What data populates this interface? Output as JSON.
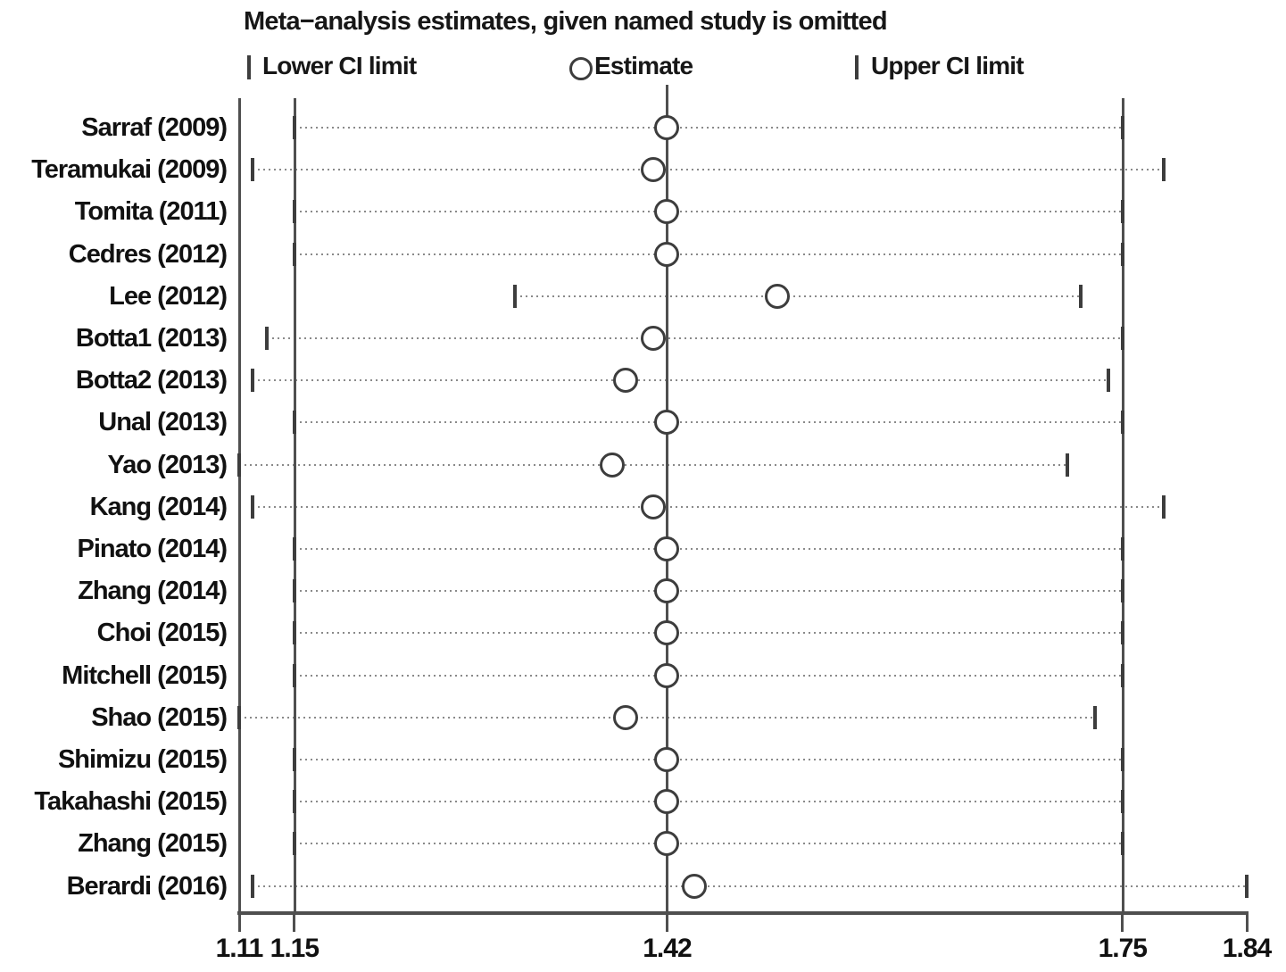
{
  "chart_data": {
    "type": "scatter",
    "variant": "leave-one-out-sensitivity-forest-plot",
    "title": "Meta−analysis estimates, given named study is omitted",
    "legend": {
      "lower": "Lower CI limit",
      "estimate": "Estimate",
      "upper": "Upper CI limit"
    },
    "xlim": [
      1.11,
      1.84
    ],
    "x_tick_values": [
      1.11,
      1.15,
      1.42,
      1.75,
      1.84
    ],
    "x_tick_labels": [
      "1.11",
      "1.15",
      "1.42",
      "1.75",
      "1.84"
    ],
    "reference_lines": {
      "overall_lower_ci": 1.15,
      "overall_estimate": 1.42,
      "overall_upper_ci": 1.75
    },
    "grid": "dotted-row-lines",
    "legend_position": "top",
    "studies": [
      {
        "label": "Sarraf (2009)",
        "lower": 1.15,
        "estimate": 1.42,
        "upper": 1.75
      },
      {
        "label": "Teramukai (2009)",
        "lower": 1.12,
        "estimate": 1.41,
        "upper": 1.78
      },
      {
        "label": "Tomita (2011)",
        "lower": 1.15,
        "estimate": 1.42,
        "upper": 1.75
      },
      {
        "label": "Cedres (2012)",
        "lower": 1.15,
        "estimate": 1.42,
        "upper": 1.75
      },
      {
        "label": "Lee (2012)",
        "lower": 1.31,
        "estimate": 1.5,
        "upper": 1.72
      },
      {
        "label": "Botta1 (2013)",
        "lower": 1.13,
        "estimate": 1.41,
        "upper": 1.75
      },
      {
        "label": "Botta2 (2013)",
        "lower": 1.12,
        "estimate": 1.39,
        "upper": 1.74
      },
      {
        "label": "Unal (2013)",
        "lower": 1.15,
        "estimate": 1.42,
        "upper": 1.75
      },
      {
        "label": "Yao (2013)",
        "lower": 1.11,
        "estimate": 1.38,
        "upper": 1.71
      },
      {
        "label": "Kang (2014)",
        "lower": 1.12,
        "estimate": 1.41,
        "upper": 1.78
      },
      {
        "label": "Pinato (2014)",
        "lower": 1.15,
        "estimate": 1.42,
        "upper": 1.75
      },
      {
        "label": "Zhang (2014)",
        "lower": 1.15,
        "estimate": 1.42,
        "upper": 1.75
      },
      {
        "label": "Choi (2015)",
        "lower": 1.15,
        "estimate": 1.42,
        "upper": 1.75
      },
      {
        "label": "Mitchell (2015)",
        "lower": 1.15,
        "estimate": 1.42,
        "upper": 1.75
      },
      {
        "label": "Shao (2015)",
        "lower": 1.11,
        "estimate": 1.39,
        "upper": 1.73
      },
      {
        "label": "Shimizu (2015)",
        "lower": 1.15,
        "estimate": 1.42,
        "upper": 1.75
      },
      {
        "label": "Takahashi (2015)",
        "lower": 1.15,
        "estimate": 1.42,
        "upper": 1.75
      },
      {
        "label": "Zhang (2015)",
        "lower": 1.15,
        "estimate": 1.42,
        "upper": 1.75
      },
      {
        "label": "Berardi (2016)",
        "lower": 1.12,
        "estimate": 1.44,
        "upper": 1.84
      }
    ],
    "colors": {
      "line": "#4f4f4f",
      "marker": "#3d3d3d",
      "dotted": "#8a8a8a",
      "text": "#111111",
      "background": "#ffffff"
    }
  }
}
